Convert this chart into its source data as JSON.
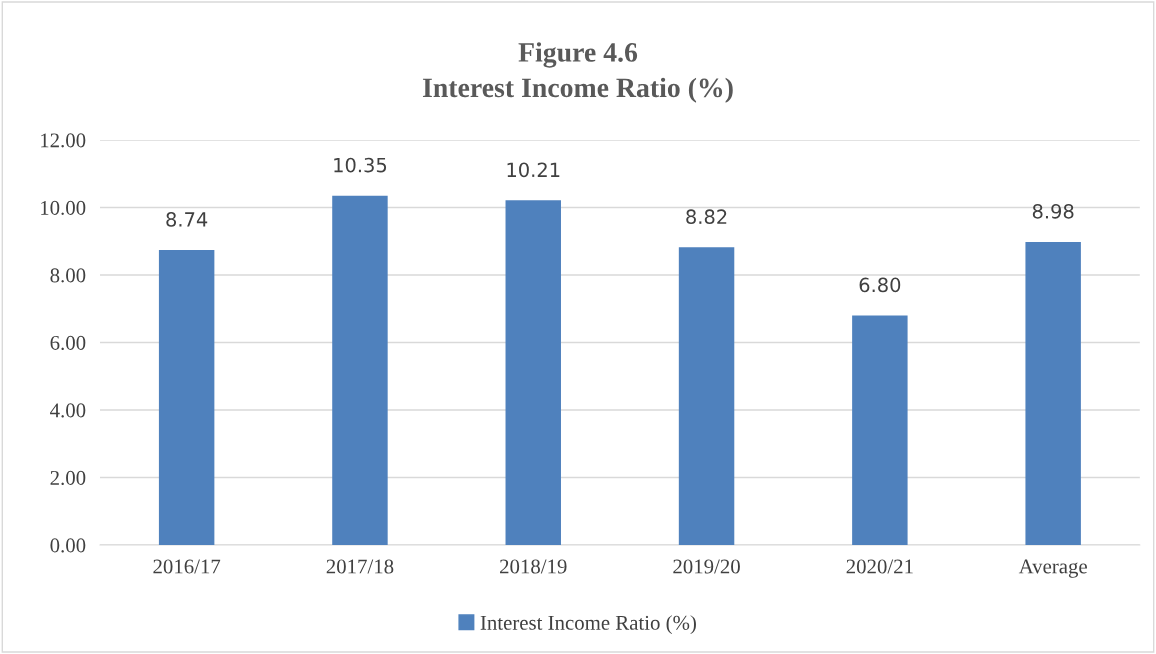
{
  "chart_data": {
    "type": "bar",
    "title": "Figure 4.6",
    "subtitle": "Interest Income Ratio (%)",
    "categories": [
      "2016/17",
      "2017/18",
      "2018/19",
      "2019/20",
      "2020/21",
      "Average"
    ],
    "series": [
      {
        "name": "Interest Income Ratio (%)",
        "color": "#4f81bd",
        "values": [
          8.74,
          10.35,
          10.21,
          8.82,
          6.8,
          8.98
        ],
        "value_labels": [
          "8.74",
          "10.35",
          "10.21",
          "8.82",
          "6.80",
          "8.98"
        ]
      }
    ],
    "ylim": [
      0,
      12
    ],
    "yticks": [
      {
        "value": 0,
        "label": "0.00"
      },
      {
        "value": 2,
        "label": "2.00"
      },
      {
        "value": 4,
        "label": "4.00"
      },
      {
        "value": 6,
        "label": "6.00"
      },
      {
        "value": 8,
        "label": "8.00"
      },
      {
        "value": 10,
        "label": "10.00"
      },
      {
        "value": 12,
        "label": "12.00"
      }
    ],
    "grid": "y",
    "legend": "bottom"
  }
}
